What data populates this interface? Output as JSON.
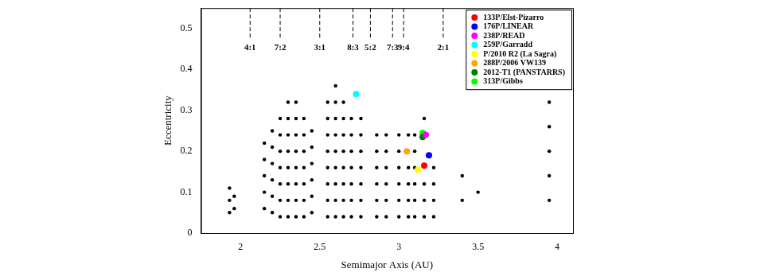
{
  "chart_data": {
    "type": "scatter",
    "x_label": "Semimajor Axis (AU)",
    "y_label": "Eccentricity",
    "xlim": [
      1.75,
      4.1
    ],
    "xticks": [
      2,
      2.5,
      3,
      3.5,
      4
    ],
    "ylim": [
      0,
      0.55
    ],
    "yticks": [
      0,
      0.1,
      0.2,
      0.3,
      0.4,
      0.5
    ],
    "grid": false,
    "legend": "upper right",
    "annotations": [
      {
        "label": "4:1",
        "x": 2.06
      },
      {
        "label": "7:2",
        "x": 2.25
      },
      {
        "label": "3:1",
        "x": 2.5
      },
      {
        "label": "8:3",
        "x": 2.71
      },
      {
        "label": "5:2",
        "x": 2.82
      },
      {
        "label": "7:3",
        "x": 2.96
      },
      {
        "label": "9:4",
        "x": 3.03
      },
      {
        "label": "2:1",
        "x": 3.28
      }
    ],
    "series": [
      {
        "color": "#000000",
        "marker": "dot",
        "points": [
          [
            1.93,
            0.05
          ],
          [
            1.93,
            0.08
          ],
          [
            1.93,
            0.11
          ],
          [
            1.96,
            0.06
          ],
          [
            1.96,
            0.09
          ],
          [
            2.15,
            0.06
          ],
          [
            2.15,
            0.1
          ],
          [
            2.15,
            0.14
          ],
          [
            2.15,
            0.18
          ],
          [
            2.15,
            0.22
          ],
          [
            2.2,
            0.05
          ],
          [
            2.2,
            0.09
          ],
          [
            2.2,
            0.13
          ],
          [
            2.2,
            0.17
          ],
          [
            2.2,
            0.21
          ],
          [
            2.2,
            0.25
          ],
          [
            2.25,
            0.04
          ],
          [
            2.25,
            0.08
          ],
          [
            2.25,
            0.12
          ],
          [
            2.25,
            0.16
          ],
          [
            2.25,
            0.2
          ],
          [
            2.25,
            0.24
          ],
          [
            2.25,
            0.28
          ],
          [
            2.3,
            0.04
          ],
          [
            2.3,
            0.08
          ],
          [
            2.3,
            0.12
          ],
          [
            2.3,
            0.16
          ],
          [
            2.3,
            0.2
          ],
          [
            2.3,
            0.24
          ],
          [
            2.3,
            0.28
          ],
          [
            2.3,
            0.32
          ],
          [
            2.35,
            0.04
          ],
          [
            2.35,
            0.08
          ],
          [
            2.35,
            0.12
          ],
          [
            2.35,
            0.16
          ],
          [
            2.35,
            0.2
          ],
          [
            2.35,
            0.24
          ],
          [
            2.35,
            0.28
          ],
          [
            2.35,
            0.32
          ],
          [
            2.4,
            0.04
          ],
          [
            2.4,
            0.08
          ],
          [
            2.4,
            0.12
          ],
          [
            2.4,
            0.16
          ],
          [
            2.4,
            0.2
          ],
          [
            2.4,
            0.24
          ],
          [
            2.4,
            0.28
          ],
          [
            2.45,
            0.05
          ],
          [
            2.45,
            0.09
          ],
          [
            2.45,
            0.13
          ],
          [
            2.45,
            0.17
          ],
          [
            2.45,
            0.21
          ],
          [
            2.45,
            0.25
          ],
          [
            2.55,
            0.04
          ],
          [
            2.55,
            0.08
          ],
          [
            2.55,
            0.12
          ],
          [
            2.55,
            0.16
          ],
          [
            2.55,
            0.2
          ],
          [
            2.55,
            0.24
          ],
          [
            2.55,
            0.28
          ],
          [
            2.55,
            0.32
          ],
          [
            2.6,
            0.04
          ],
          [
            2.6,
            0.08
          ],
          [
            2.6,
            0.12
          ],
          [
            2.6,
            0.16
          ],
          [
            2.6,
            0.2
          ],
          [
            2.6,
            0.24
          ],
          [
            2.6,
            0.28
          ],
          [
            2.6,
            0.32
          ],
          [
            2.6,
            0.36
          ],
          [
            2.65,
            0.04
          ],
          [
            2.65,
            0.08
          ],
          [
            2.65,
            0.12
          ],
          [
            2.65,
            0.16
          ],
          [
            2.65,
            0.2
          ],
          [
            2.65,
            0.24
          ],
          [
            2.65,
            0.28
          ],
          [
            2.65,
            0.32
          ],
          [
            2.7,
            0.04
          ],
          [
            2.7,
            0.08
          ],
          [
            2.7,
            0.12
          ],
          [
            2.7,
            0.16
          ],
          [
            2.7,
            0.2
          ],
          [
            2.7,
            0.24
          ],
          [
            2.7,
            0.28
          ],
          [
            2.76,
            0.04
          ],
          [
            2.76,
            0.08
          ],
          [
            2.76,
            0.12
          ],
          [
            2.76,
            0.16
          ],
          [
            2.76,
            0.2
          ],
          [
            2.76,
            0.24
          ],
          [
            2.76,
            0.28
          ],
          [
            2.86,
            0.04
          ],
          [
            2.86,
            0.08
          ],
          [
            2.86,
            0.12
          ],
          [
            2.86,
            0.16
          ],
          [
            2.86,
            0.2
          ],
          [
            2.86,
            0.24
          ],
          [
            2.92,
            0.04
          ],
          [
            2.92,
            0.08
          ],
          [
            2.92,
            0.12
          ],
          [
            2.92,
            0.16
          ],
          [
            2.92,
            0.2
          ],
          [
            2.92,
            0.24
          ],
          [
            3.0,
            0.04
          ],
          [
            3.0,
            0.08
          ],
          [
            3.0,
            0.12
          ],
          [
            3.0,
            0.16
          ],
          [
            3.0,
            0.2
          ],
          [
            3.0,
            0.24
          ],
          [
            3.06,
            0.04
          ],
          [
            3.06,
            0.08
          ],
          [
            3.06,
            0.12
          ],
          [
            3.06,
            0.16
          ],
          [
            3.06,
            0.24
          ],
          [
            3.1,
            0.04
          ],
          [
            3.1,
            0.08
          ],
          [
            3.1,
            0.12
          ],
          [
            3.1,
            0.16
          ],
          [
            3.1,
            0.2
          ],
          [
            3.1,
            0.24
          ],
          [
            3.16,
            0.04
          ],
          [
            3.16,
            0.08
          ],
          [
            3.16,
            0.12
          ],
          [
            3.16,
            0.28
          ],
          [
            3.22,
            0.04
          ],
          [
            3.22,
            0.08
          ],
          [
            3.22,
            0.12
          ],
          [
            3.22,
            0.16
          ],
          [
            3.4,
            0.08
          ],
          [
            3.4,
            0.14
          ],
          [
            3.5,
            0.1
          ],
          [
            3.95,
            0.08
          ],
          [
            3.95,
            0.14
          ],
          [
            3.95,
            0.2
          ],
          [
            3.95,
            0.26
          ],
          [
            3.95,
            0.32
          ]
        ]
      },
      {
        "name": "133P/Elst-Pizarro",
        "color": "#ff0000",
        "marker": "circle",
        "points": [
          [
            3.16,
            0.165
          ]
        ]
      },
      {
        "name": "176P/LINEAR",
        "color": "#0000ff",
        "marker": "circle",
        "points": [
          [
            3.19,
            0.19
          ]
        ]
      },
      {
        "name": "238P/READ",
        "color": "#ff00ff",
        "marker": "circle",
        "points": [
          [
            3.17,
            0.24
          ]
        ]
      },
      {
        "name": "259P/Garradd",
        "color": "#00ffff",
        "marker": "circle",
        "points": [
          [
            2.73,
            0.34
          ]
        ]
      },
      {
        "name": "P/2010 R2 (La Sagra)",
        "color": "#ffff00",
        "marker": "circle",
        "points": [
          [
            3.12,
            0.155
          ]
        ]
      },
      {
        "name": "288P/2006 VW139",
        "color": "#ffa500",
        "marker": "circle",
        "points": [
          [
            3.05,
            0.2
          ]
        ]
      },
      {
        "name": "2012-T1 (PANSTARRS)",
        "color": "#008000",
        "marker": "circle",
        "points": [
          [
            3.15,
            0.235
          ]
        ]
      },
      {
        "name": "313P/Gibbs",
        "color": "#00ff00",
        "marker": "circle",
        "points": [
          [
            3.15,
            0.245
          ]
        ]
      }
    ]
  }
}
